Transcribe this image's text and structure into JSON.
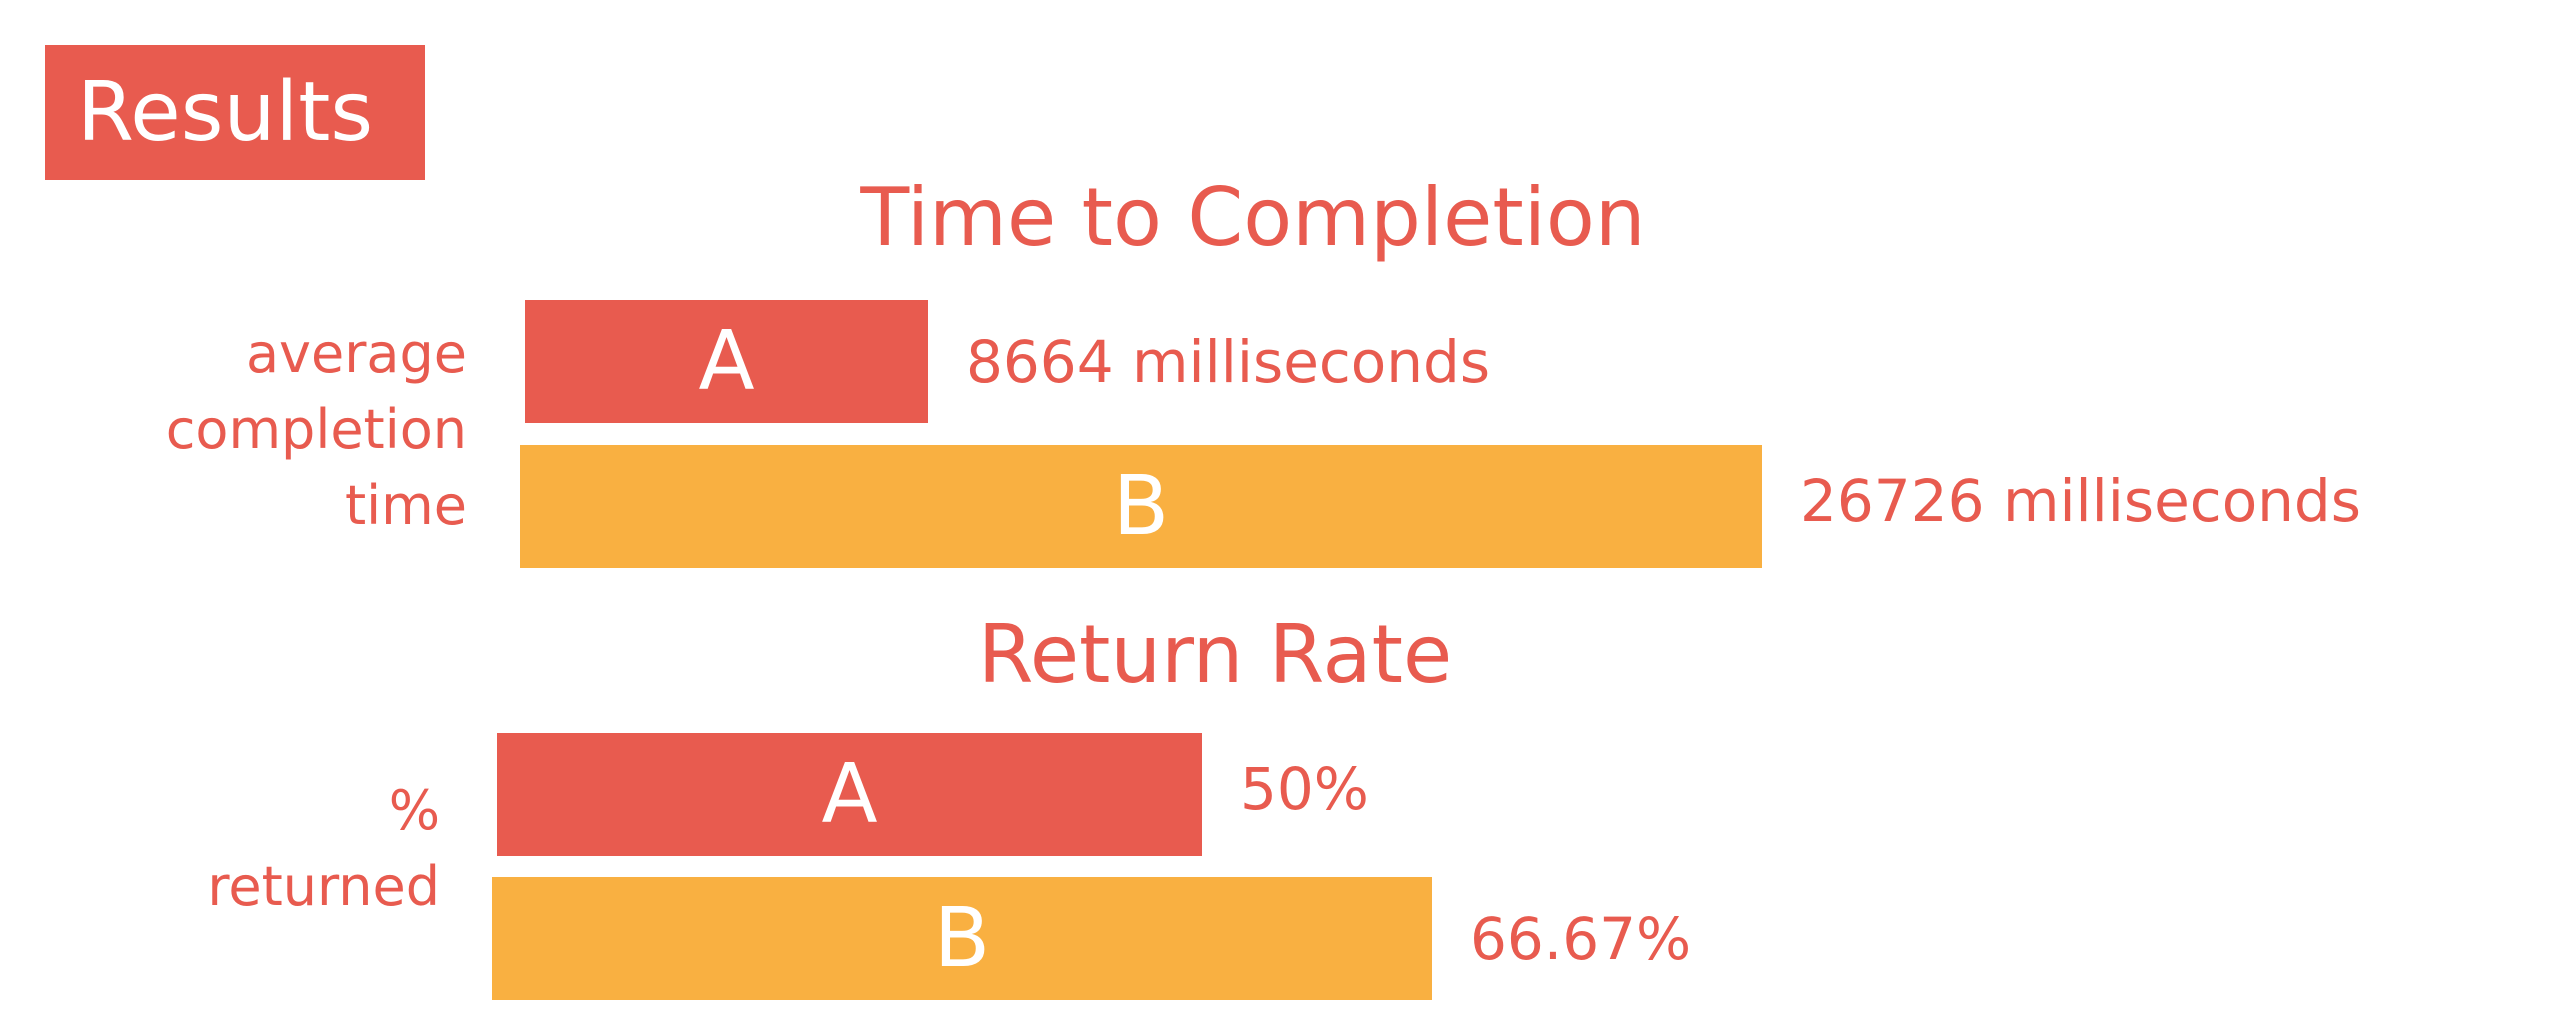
{
  "header": {
    "badge_label": "Results"
  },
  "colors": {
    "series_a": "#e85b4f",
    "series_b": "#f9b041",
    "text": "#e85b4f"
  },
  "chart_data": [
    {
      "type": "bar",
      "orientation": "horizontal",
      "title": "Time to Completion",
      "ylabel": "average\ncompletion\ntime",
      "categories": [
        "A",
        "B"
      ],
      "values": [
        8664,
        26726
      ],
      "value_labels": [
        "8664 milliseconds",
        "26726 milliseconds"
      ],
      "grid": false
    },
    {
      "type": "bar",
      "orientation": "horizontal",
      "title": "Return Rate",
      "ylabel": "%\nreturned",
      "categories": [
        "A",
        "B"
      ],
      "values": [
        50,
        66.67
      ],
      "value_labels": [
        "50%",
        "66.67%"
      ],
      "grid": false
    }
  ]
}
